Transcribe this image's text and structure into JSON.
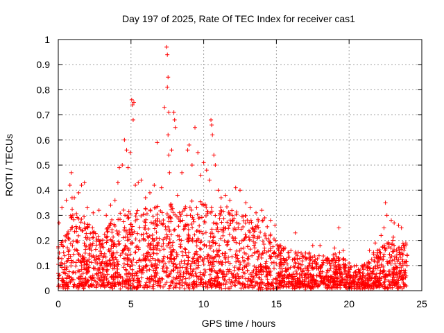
{
  "chart_data": {
    "type": "scatter",
    "title": "Day 197 of 2025, Rate Of TEC Index for receiver cas1",
    "xlabel": "GPS time / hours",
    "ylabel": "ROTI / TECUs",
    "xlim": [
      0,
      25
    ],
    "ylim": [
      0,
      1
    ],
    "xticks": [
      0,
      5,
      10,
      15,
      20,
      25
    ],
    "yticks": [
      0,
      0.1,
      0.2,
      0.3,
      0.4,
      0.5,
      0.6,
      0.7,
      0.8,
      0.9,
      1
    ],
    "xtick_labels": [
      "0",
      "5",
      "10",
      "15",
      "20",
      "25"
    ],
    "ytick_labels": [
      "0",
      "0.1",
      "0.2",
      "0.3",
      "0.4",
      "0.5",
      "0.6",
      "0.7",
      "0.8",
      "0.9",
      "1"
    ],
    "grid": true,
    "marker": "+",
    "series": [
      {
        "name": "ROTI",
        "color": "#ff0000",
        "note": "dense point cloud; representative sampling of the visible distribution",
        "envelope_hours": [
          0,
          0.5,
          1,
          1.5,
          2,
          2.5,
          3,
          3.5,
          4,
          4.5,
          5,
          5.5,
          6,
          6.5,
          7,
          7.5,
          8,
          8.5,
          9,
          9.5,
          10,
          10.5,
          11,
          11.5,
          12,
          12.5,
          13,
          13.5,
          14,
          14.5,
          15,
          15.5,
          16,
          16.5,
          17,
          17.5,
          18,
          18.5,
          19,
          19.5,
          20,
          20.5,
          21,
          21.5,
          22,
          22.5,
          23,
          23.5,
          24
        ],
        "envelope_typical_max": [
          0.18,
          0.25,
          0.33,
          0.3,
          0.28,
          0.25,
          0.2,
          0.27,
          0.3,
          0.32,
          0.33,
          0.33,
          0.32,
          0.33,
          0.34,
          0.36,
          0.36,
          0.33,
          0.34,
          0.37,
          0.36,
          0.35,
          0.33,
          0.34,
          0.32,
          0.32,
          0.3,
          0.29,
          0.29,
          0.26,
          0.2,
          0.17,
          0.16,
          0.15,
          0.15,
          0.14,
          0.14,
          0.13,
          0.15,
          0.14,
          0.11,
          0.1,
          0.1,
          0.14,
          0.17,
          0.19,
          0.21,
          0.21,
          0.19
        ],
        "outliers": [
          [
            0.0,
            0.17
          ],
          [
            0.05,
            0.27
          ],
          [
            0.25,
            0.33
          ],
          [
            0.55,
            0.36
          ],
          [
            0.8,
            0.42
          ],
          [
            0.9,
            0.47
          ],
          [
            0.95,
            0.37
          ],
          [
            1.1,
            0.37
          ],
          [
            1.4,
            0.39
          ],
          [
            1.6,
            0.42
          ],
          [
            1.8,
            0.43
          ],
          [
            2.0,
            0.33
          ],
          [
            2.4,
            0.31
          ],
          [
            2.8,
            0.32
          ],
          [
            3.3,
            0.3
          ],
          [
            3.6,
            0.34
          ],
          [
            3.9,
            0.36
          ],
          [
            4.1,
            0.43
          ],
          [
            4.2,
            0.49
          ],
          [
            4.4,
            0.5
          ],
          [
            4.55,
            0.6
          ],
          [
            4.7,
            0.56
          ],
          [
            4.8,
            0.49
          ],
          [
            4.95,
            0.55
          ],
          [
            5.05,
            0.76
          ],
          [
            5.1,
            0.74
          ],
          [
            5.15,
            0.68
          ],
          [
            5.2,
            0.75
          ],
          [
            5.3,
            0.42
          ],
          [
            5.5,
            0.43
          ],
          [
            5.7,
            0.44
          ],
          [
            6.0,
            0.37
          ],
          [
            6.3,
            0.39
          ],
          [
            6.6,
            0.42
          ],
          [
            6.8,
            0.59
          ],
          [
            7.1,
            0.41
          ],
          [
            7.3,
            0.73
          ],
          [
            7.45,
            0.97
          ],
          [
            7.5,
            0.94
          ],
          [
            7.55,
            0.85
          ],
          [
            7.5,
            0.81
          ],
          [
            7.6,
            0.71
          ],
          [
            7.55,
            0.62
          ],
          [
            7.6,
            0.54
          ],
          [
            7.65,
            0.47
          ],
          [
            7.8,
            0.56
          ],
          [
            7.95,
            0.71
          ],
          [
            8.0,
            0.68
          ],
          [
            8.05,
            0.65
          ],
          [
            8.2,
            0.38
          ],
          [
            8.5,
            0.47
          ],
          [
            8.9,
            0.56
          ],
          [
            9.0,
            0.58
          ],
          [
            9.2,
            0.5
          ],
          [
            9.4,
            0.65
          ],
          [
            9.6,
            0.55
          ],
          [
            9.8,
            0.46
          ],
          [
            10.0,
            0.51
          ],
          [
            10.2,
            0.48
          ],
          [
            10.4,
            0.44
          ],
          [
            10.5,
            0.68
          ],
          [
            10.55,
            0.66
          ],
          [
            10.6,
            0.62
          ],
          [
            10.7,
            0.54
          ],
          [
            10.8,
            0.5
          ],
          [
            11.0,
            0.4
          ],
          [
            11.2,
            0.37
          ],
          [
            11.5,
            0.38
          ],
          [
            11.8,
            0.36
          ],
          [
            12.2,
            0.41
          ],
          [
            12.5,
            0.4
          ],
          [
            12.9,
            0.35
          ],
          [
            13.2,
            0.33
          ],
          [
            13.6,
            0.31
          ],
          [
            14.0,
            0.32
          ],
          [
            14.2,
            0.29
          ],
          [
            14.6,
            0.28
          ],
          [
            14.9,
            0.26
          ],
          [
            15.3,
            0.18
          ],
          [
            15.6,
            0.17
          ],
          [
            16.0,
            0.16
          ],
          [
            16.3,
            0.23
          ],
          [
            16.7,
            0.15
          ],
          [
            17.0,
            0.15
          ],
          [
            17.5,
            0.18
          ],
          [
            18.0,
            0.18
          ],
          [
            18.5,
            0.13
          ],
          [
            19.0,
            0.17
          ],
          [
            19.3,
            0.25
          ],
          [
            19.6,
            0.16
          ],
          [
            20.0,
            0.11
          ],
          [
            20.5,
            0.1
          ],
          [
            21.0,
            0.1
          ],
          [
            21.4,
            0.16
          ],
          [
            21.8,
            0.19
          ],
          [
            22.2,
            0.22
          ],
          [
            22.4,
            0.25
          ],
          [
            22.5,
            0.35
          ],
          [
            22.6,
            0.3
          ],
          [
            22.9,
            0.28
          ],
          [
            23.1,
            0.27
          ],
          [
            23.4,
            0.26
          ],
          [
            23.6,
            0.25
          ],
          [
            23.9,
            0.19
          ],
          [
            24.0,
            0.14
          ]
        ]
      }
    ]
  }
}
